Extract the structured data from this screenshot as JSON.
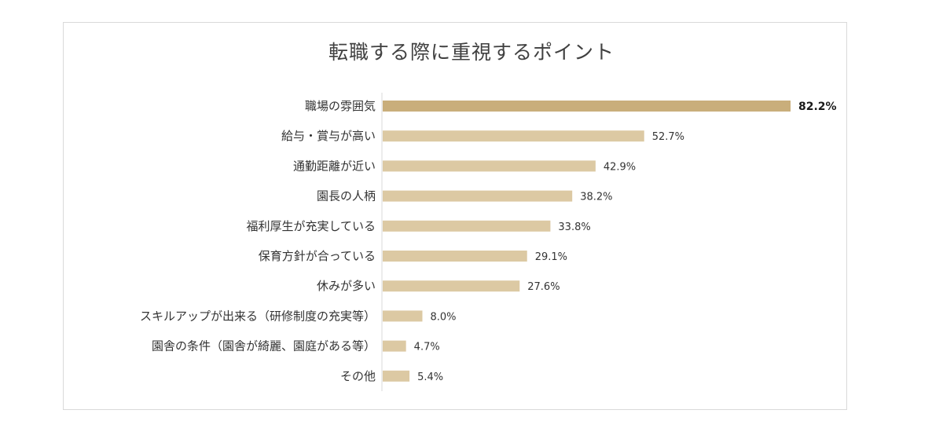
{
  "chart_data": {
    "type": "bar",
    "orientation": "horizontal",
    "title": "転職する際に重視するポイント",
    "categories": [
      "職場の雰囲気",
      "給与・賞与が高い",
      "通勤距離が近い",
      "園長の人柄",
      "福利厚生が充実している",
      "保育方針が合っている",
      "休みが多い",
      "スキルアップが出来る（研修制度の充実等）",
      "園舎の条件（園舎が綺麗、園庭がある等）",
      "その他"
    ],
    "values": [
      82.2,
      52.7,
      42.9,
      38.2,
      33.8,
      29.1,
      27.6,
      8.0,
      4.7,
      5.4
    ],
    "value_labels": [
      "82.2%",
      "52.7%",
      "42.9%",
      "38.2%",
      "33.8%",
      "29.1%",
      "27.6%",
      "8.0%",
      "4.7%",
      "5.4%"
    ],
    "xlim": [
      0,
      100
    ],
    "grid": false,
    "legend": "none",
    "colors": {
      "highlight": "#c9ae7b",
      "bar": "#dcc9a3",
      "axis": "#d9d9d9"
    }
  }
}
